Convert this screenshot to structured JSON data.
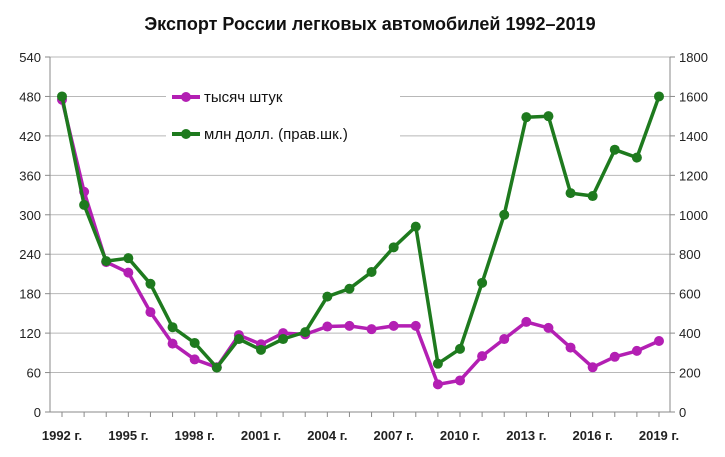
{
  "chart_data": {
    "type": "line",
    "title": "Экспорт России легковых автомобилей 1992–2019",
    "x": [
      1992,
      1993,
      1994,
      1995,
      1996,
      1997,
      1998,
      1999,
      2000,
      2001,
      2002,
      2003,
      2004,
      2005,
      2006,
      2007,
      2008,
      2009,
      2010,
      2011,
      2012,
      2013,
      2014,
      2015,
      2016,
      2017,
      2018,
      2019
    ],
    "x_tick_labels": [
      "1992 г.",
      "1995 г.",
      "1998 г.",
      "2001 г.",
      "2004 г.",
      "2007 г.",
      "2010 г.",
      "2013 г.",
      "2016 г.",
      "2019 г."
    ],
    "x_tick_years": [
      1992,
      1995,
      1998,
      2001,
      2004,
      2007,
      2010,
      2013,
      2016,
      2019
    ],
    "xlim": [
      1992,
      2019
    ],
    "ylim_left": [
      0,
      540
    ],
    "ylim_right": [
      0,
      1800
    ],
    "yticks_left": [
      "0",
      "60",
      "120",
      "180",
      "240",
      "300",
      "360",
      "420",
      "480",
      "540"
    ],
    "yticks_right": [
      "0",
      "200",
      "400",
      "600",
      "800",
      "1000",
      "1200",
      "1400",
      "1600",
      "1800"
    ],
    "grid": true,
    "legend_position": "top-left",
    "series": [
      {
        "name": "тысяч штук",
        "axis": "left",
        "color": "#b31fb3",
        "values": [
          475,
          335,
          228,
          212,
          152,
          104,
          80,
          68,
          117,
          103,
          120,
          118,
          130,
          131,
          126,
          131,
          131,
          42,
          48,
          85,
          111,
          137,
          128,
          98,
          68,
          84,
          93,
          108
        ]
      },
      {
        "name": "млн долл. (прав.шк.)",
        "axis": "right",
        "color": "#1e7a1e",
        "values": [
          1600,
          1050,
          765,
          780,
          650,
          430,
          350,
          225,
          370,
          315,
          370,
          405,
          585,
          625,
          710,
          835,
          940,
          245,
          320,
          655,
          1000,
          1495,
          1500,
          1110,
          1095,
          1330,
          1290,
          1600
        ]
      }
    ]
  }
}
